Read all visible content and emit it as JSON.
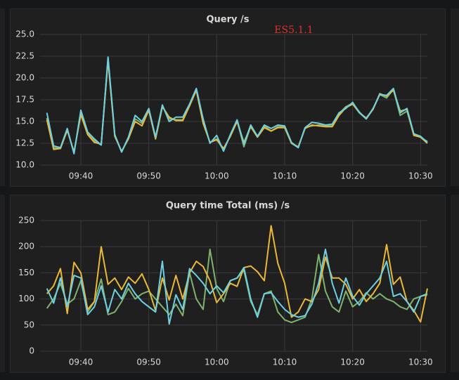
{
  "chart_data": [
    {
      "type": "line",
      "title": "Query /s",
      "annotation": "ES5.1.1",
      "x": [
        "09:35",
        "09:36",
        "09:37",
        "09:38",
        "09:39",
        "09:40",
        "09:41",
        "09:42",
        "09:43",
        "09:44",
        "09:45",
        "09:46",
        "09:47",
        "09:48",
        "09:49",
        "09:50",
        "09:51",
        "09:52",
        "09:53",
        "09:54",
        "09:55",
        "09:56",
        "09:57",
        "09:58",
        "09:59",
        "10:00",
        "10:01",
        "10:02",
        "10:03",
        "10:04",
        "10:05",
        "10:06",
        "10:07",
        "10:08",
        "10:09",
        "10:10",
        "10:11",
        "10:12",
        "10:13",
        "10:14",
        "10:15",
        "10:16",
        "10:17",
        "10:18",
        "10:19",
        "10:20",
        "10:21",
        "10:22",
        "10:23",
        "10:24",
        "10:25",
        "10:26",
        "10:27",
        "10:28",
        "10:29",
        "10:30",
        "10:31"
      ],
      "xlim": [
        "09:34",
        "10:31"
      ],
      "xticks": [
        "09:40",
        "09:50",
        "10:00",
        "10:10",
        "10:20",
        "10:30"
      ],
      "ylim": [
        10,
        25
      ],
      "yticks": [
        {
          "value": 10,
          "label": "10.0"
        },
        {
          "value": 12.5,
          "label": "12.5"
        },
        {
          "value": 15,
          "label": "15.0"
        },
        {
          "value": 17.5,
          "label": "17.5"
        },
        {
          "value": 20,
          "label": "20.0"
        },
        {
          "value": 22.5,
          "label": "22.5"
        },
        {
          "value": 25,
          "label": "25.0"
        }
      ],
      "grid": true,
      "series": [
        {
          "color": "#7eb26d",
          "values": [
            15.4,
            12.0,
            11.9,
            14.1,
            11.4,
            16.0,
            13.6,
            12.8,
            12.3,
            22.2,
            13.4,
            11.5,
            13.1,
            15.3,
            14.8,
            16.4,
            13.1,
            16.8,
            15.3,
            15.2,
            15.2,
            16.9,
            18.7,
            15.0,
            12.6,
            13.0,
            11.7,
            13.4,
            15.1,
            12.1,
            14.5,
            13.3,
            14.5,
            13.9,
            14.4,
            14.4,
            12.5,
            12.0,
            14.3,
            14.5,
            14.6,
            14.5,
            14.5,
            15.9,
            16.7,
            17.1,
            16.1,
            15.3,
            16.4,
            18.1,
            17.7,
            18.7,
            15.7,
            16.2,
            13.5,
            13.2,
            12.7
          ]
        },
        {
          "color": "#eab839",
          "values": [
            15.2,
            11.8,
            11.9,
            14.0,
            11.5,
            15.8,
            13.5,
            12.6,
            12.4,
            22.0,
            13.3,
            11.6,
            13.0,
            15.0,
            14.5,
            16.3,
            13.0,
            16.7,
            15.5,
            15.1,
            15.1,
            16.8,
            18.6,
            14.8,
            12.6,
            12.9,
            11.9,
            13.3,
            15.0,
            12.6,
            14.4,
            13.2,
            14.3,
            13.9,
            14.3,
            14.3,
            12.5,
            12.1,
            14.2,
            14.6,
            14.5,
            14.4,
            14.4,
            15.7,
            16.6,
            17.0,
            16.0,
            15.4,
            16.4,
            18.2,
            17.9,
            18.6,
            16.2,
            16.4,
            13.4,
            13.2,
            12.5
          ]
        },
        {
          "color": "#6ed0e0",
          "values": [
            16.0,
            12.2,
            12.0,
            14.2,
            11.3,
            16.3,
            13.8,
            13.0,
            12.3,
            22.4,
            13.5,
            11.5,
            13.2,
            15.7,
            15.0,
            16.5,
            13.2,
            16.9,
            15.0,
            15.5,
            15.5,
            17.0,
            18.8,
            15.3,
            12.5,
            13.4,
            11.6,
            13.5,
            15.2,
            12.4,
            14.6,
            13.3,
            14.6,
            14.2,
            14.6,
            14.5,
            12.6,
            12.0,
            14.3,
            14.9,
            14.8,
            14.6,
            14.7,
            16.0,
            16.5,
            17.2,
            16.0,
            15.3,
            16.5,
            18.1,
            18.0,
            18.8,
            16.0,
            16.5,
            13.6,
            13.3,
            12.6
          ]
        }
      ]
    },
    {
      "type": "line",
      "title": "Query time Total (ms) /s",
      "x": [
        "09:35",
        "09:36",
        "09:37",
        "09:38",
        "09:39",
        "09:40",
        "09:41",
        "09:42",
        "09:43",
        "09:44",
        "09:45",
        "09:46",
        "09:47",
        "09:48",
        "09:49",
        "09:50",
        "09:51",
        "09:52",
        "09:53",
        "09:54",
        "09:55",
        "09:56",
        "09:57",
        "09:58",
        "09:59",
        "10:00",
        "10:01",
        "10:02",
        "10:03",
        "10:04",
        "10:05",
        "10:06",
        "10:07",
        "10:08",
        "10:09",
        "10:10",
        "10:11",
        "10:12",
        "10:13",
        "10:14",
        "10:15",
        "10:16",
        "10:17",
        "10:18",
        "10:19",
        "10:20",
        "10:21",
        "10:22",
        "10:23",
        "10:24",
        "10:25",
        "10:26",
        "10:27",
        "10:28",
        "10:29",
        "10:30",
        "10:31"
      ],
      "xlim": [
        "09:34",
        "10:31"
      ],
      "xticks": [
        "09:40",
        "09:50",
        "10:00",
        "10:10",
        "10:20",
        "10:30"
      ],
      "ylim": [
        0,
        250
      ],
      "yticks": [
        0,
        50,
        100,
        150,
        200,
        250
      ],
      "grid": true,
      "series": [
        {
          "color": "#7eb26d",
          "values": [
            82,
            100,
            130,
            90,
            100,
            135,
            75,
            95,
            138,
            70,
            75,
            95,
            120,
            100,
            110,
            115,
            100,
            85,
            70,
            90,
            68,
            150,
            100,
            80,
            195,
            120,
            95,
            135,
            140,
            155,
            95,
            70,
            110,
            115,
            75,
            60,
            55,
            60,
            65,
            100,
            185,
            115,
            85,
            75,
            115,
            85,
            95,
            112,
            100,
            110,
            100,
            95,
            85,
            80,
            100,
            105,
            108
          ]
        },
        {
          "color": "#eab839",
          "values": [
            110,
            125,
            158,
            72,
            170,
            150,
            80,
            95,
            200,
            128,
            140,
            118,
            142,
            130,
            148,
            118,
            78,
            140,
            98,
            145,
            100,
            150,
            172,
            162,
            135,
            93,
            110,
            130,
            124,
            160,
            163,
            152,
            135,
            240,
            168,
            130,
            65,
            75,
            100,
            95,
            118,
            180,
            140,
            140,
            128,
            100,
            118,
            95,
            110,
            130,
            204,
            128,
            142,
            95,
            78,
            56,
            120
          ]
        },
        {
          "color": "#6ed0e0",
          "values": [
            120,
            92,
            140,
            85,
            145,
            140,
            70,
            85,
            125,
            75,
            118,
            100,
            130,
            110,
            95,
            85,
            75,
            172,
            52,
            108,
            80,
            158,
            145,
            130,
            110,
            125,
            112,
            135,
            140,
            160,
            100,
            65,
            110,
            112,
            95,
            80,
            70,
            65,
            68,
            90,
            130,
            195,
            130,
            92,
            140,
            105,
            88,
            110,
            125,
            140,
            172,
            105,
            110,
            95,
            75,
            105,
            110
          ]
        }
      ]
    }
  ]
}
